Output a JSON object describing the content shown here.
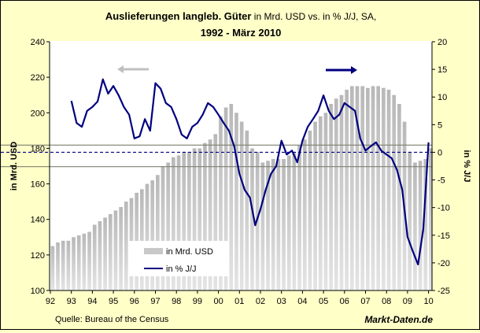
{
  "chart_data": {
    "type": "bar+line",
    "title_bold": "Auslieferungen langleb. Güter",
    "title_rest": " in Mrd. USD vs. in % J/J, SA,",
    "subtitle": "1992 - März 2010",
    "ylabel_left": "in Mrd. USD",
    "ylabel_right": "in % J/J",
    "ylim_left": [
      100,
      240
    ],
    "yticks_left": [
      "100",
      "120",
      "140",
      "160",
      "180",
      "200",
      "220",
      "240"
    ],
    "ylim_right": [
      -25,
      20
    ],
    "yticks_right": [
      "-25",
      "-20",
      "-15",
      "-10",
      "-5",
      "0",
      "5",
      "10",
      "15",
      "20"
    ],
    "xticks": [
      "92",
      "93",
      "94",
      "95",
      "96",
      "97",
      "98",
      "99",
      "00",
      "01",
      "02",
      "03",
      "04",
      "05",
      "06",
      "07",
      "08",
      "09",
      "10"
    ],
    "grid": false,
    "legend_position": "bottom-left",
    "bars": {
      "name": "in Mrd. USD",
      "axis": "left",
      "start": "1992 Q1",
      "frequency": "quarterly",
      "color": "#c0c0c0",
      "values": [
        125,
        127,
        128,
        128,
        130,
        131,
        132,
        133,
        137,
        139,
        141,
        143,
        145,
        147,
        150,
        152,
        155,
        157,
        160,
        162,
        165,
        170,
        172,
        175,
        176,
        178,
        178,
        180,
        180,
        183,
        185,
        188,
        198,
        203,
        205,
        200,
        195,
        190,
        180,
        178,
        172,
        173,
        174,
        174,
        174,
        176,
        178,
        182,
        185,
        190,
        195,
        198,
        200,
        205,
        208,
        210,
        213,
        215,
        215,
        215,
        214,
        215,
        215,
        214,
        213,
        210,
        205,
        195,
        178,
        172,
        173,
        174,
        180
      ]
    },
    "line": {
      "name": "in % J/J",
      "axis": "right",
      "start": "1993 Q1",
      "frequency": "quarterly",
      "color": "#000080",
      "values": [
        9.3,
        5.3,
        4.6,
        7.5,
        8.2,
        9.2,
        13.2,
        10.6,
        12,
        10.3,
        8.2,
        6.8,
        2.5,
        2.9,
        6,
        3.9,
        12.5,
        11.5,
        8.9,
        8.2,
        6,
        3.2,
        2.5,
        4.6,
        5.3,
        6.8,
        8.9,
        8.2,
        6.8,
        5.3,
        3.9,
        1.1,
        -3.9,
        -6.8,
        -8.2,
        -13.2,
        -10.3,
        -6.8,
        -3.9,
        -2.5,
        2.1,
        -0.4,
        0.3,
        -1.8,
        2.1,
        4.6,
        6,
        7.5,
        10.3,
        7.5,
        6,
        6.8,
        8.9,
        8.2,
        7.5,
        2.5,
        0.3,
        1.1,
        1.8,
        0.3,
        -0.4,
        -1.1,
        -3.2,
        -6.8,
        -15.3,
        -17.9,
        -20.3,
        -13.9,
        1.8
      ]
    },
    "reference_lines_right": [
      {
        "value": 1.3,
        "style": "solid",
        "color": "#808070"
      },
      {
        "value": 0,
        "style": "dashed",
        "color": "#000080"
      },
      {
        "value": -2.6,
        "style": "solid",
        "color": "#808070"
      }
    ],
    "arrows": [
      {
        "direction": "left",
        "meaning": "left axis",
        "color": "#c0c0c0"
      },
      {
        "direction": "right",
        "meaning": "right axis",
        "color": "#000080"
      }
    ]
  },
  "footer": {
    "source": "Quelle: Bureau of the Census",
    "brand": "Markt-Daten.de"
  }
}
